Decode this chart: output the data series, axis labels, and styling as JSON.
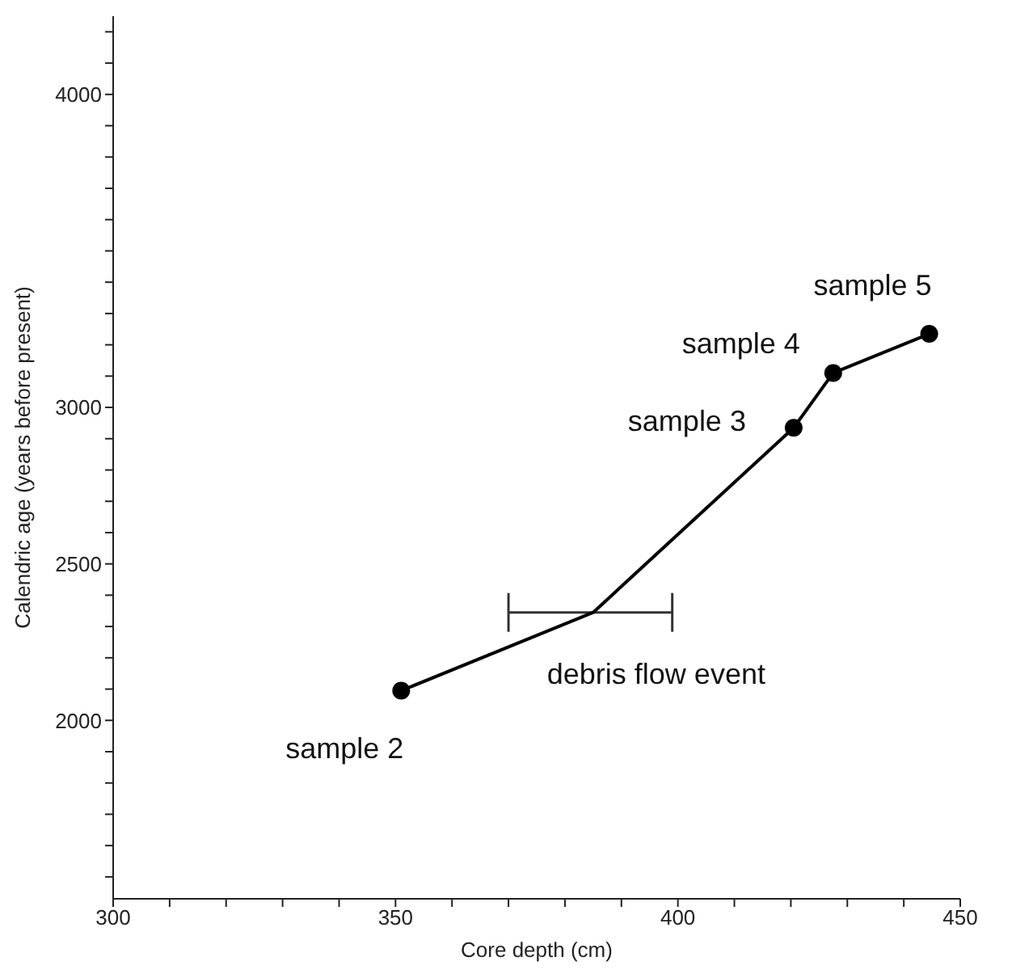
{
  "chart_data": {
    "type": "line",
    "xlabel": "Core depth (cm)",
    "ylabel": "Calendric age (years before present)",
    "xlim": [
      300,
      450
    ],
    "xticks": [
      300,
      {
        "value": 310,
        "label": null
      },
      {
        "value": 320,
        "label": null
      },
      {
        "value": 330,
        "label": null
      },
      {
        "value": 340,
        "label": null
      },
      350,
      {
        "value": 360,
        "label": null
      },
      {
        "value": 370,
        "label": null
      },
      {
        "value": 380,
        "label": null
      },
      {
        "value": 390,
        "label": null
      },
      400,
      {
        "value": 410,
        "label": null
      },
      {
        "value": 420,
        "label": null
      },
      {
        "value": 430,
        "label": null
      },
      {
        "value": 440,
        "label": null
      },
      450
    ],
    "ylim": [
      1430,
      4250
    ],
    "yticks": [
      {
        "value": 1500,
        "label": null
      },
      {
        "value": 1600,
        "label": null
      },
      {
        "value": 1700,
        "label": null
      },
      {
        "value": 1800,
        "label": null
      },
      {
        "value": 1900,
        "label": null
      },
      2000,
      {
        "value": 2100,
        "label": null
      },
      {
        "value": 2200,
        "label": null
      },
      {
        "value": 2300,
        "label": null
      },
      {
        "value": 2400,
        "label": null
      },
      2500,
      {
        "value": 2600,
        "label": null
      },
      {
        "value": 2700,
        "label": null
      },
      {
        "value": 2800,
        "label": null
      },
      {
        "value": 2900,
        "label": null
      },
      3000,
      {
        "value": 3100,
        "label": null
      },
      {
        "value": 3200,
        "label": null
      },
      {
        "value": 3300,
        "label": null
      },
      {
        "value": 3400,
        "label": null
      },
      {
        "value": 3500,
        "label": null
      },
      {
        "value": 3600,
        "label": null
      },
      {
        "value": 3700,
        "label": null
      },
      {
        "value": 3800,
        "label": null
      },
      {
        "value": 3900,
        "label": null
      },
      4000,
      {
        "value": 4100,
        "label": null
      },
      {
        "value": 4200,
        "label": null
      }
    ],
    "series": [
      {
        "color": "#000000",
        "marker": "none",
        "x": [
          351,
          385,
          420.5,
          427.5,
          444.5
        ],
        "values": [
          2095,
          2345,
          2935,
          3110,
          3235
        ],
        "xerrors": [
          null,
          [
            370,
            399
          ],
          null,
          null,
          null
        ]
      },
      {
        "type": "scatter",
        "color": "#000000",
        "marker": "circle",
        "x": [
          351,
          420.5,
          427.5,
          444.5
        ],
        "values": [
          2095,
          2935,
          3110,
          3235
        ]
      }
    ],
    "annotations": [
      {
        "text": "sample 2",
        "x": 351,
        "y": 2095
      },
      {
        "text": "sample 3",
        "x": 420.5,
        "y": 2935
      },
      {
        "text": "sample 4",
        "x": 427.5,
        "y": 3110
      },
      {
        "text": "sample 5",
        "x": 444.5,
        "y": 3235
      },
      {
        "text": "debris flow event",
        "x": 385,
        "y": 2345
      }
    ]
  }
}
